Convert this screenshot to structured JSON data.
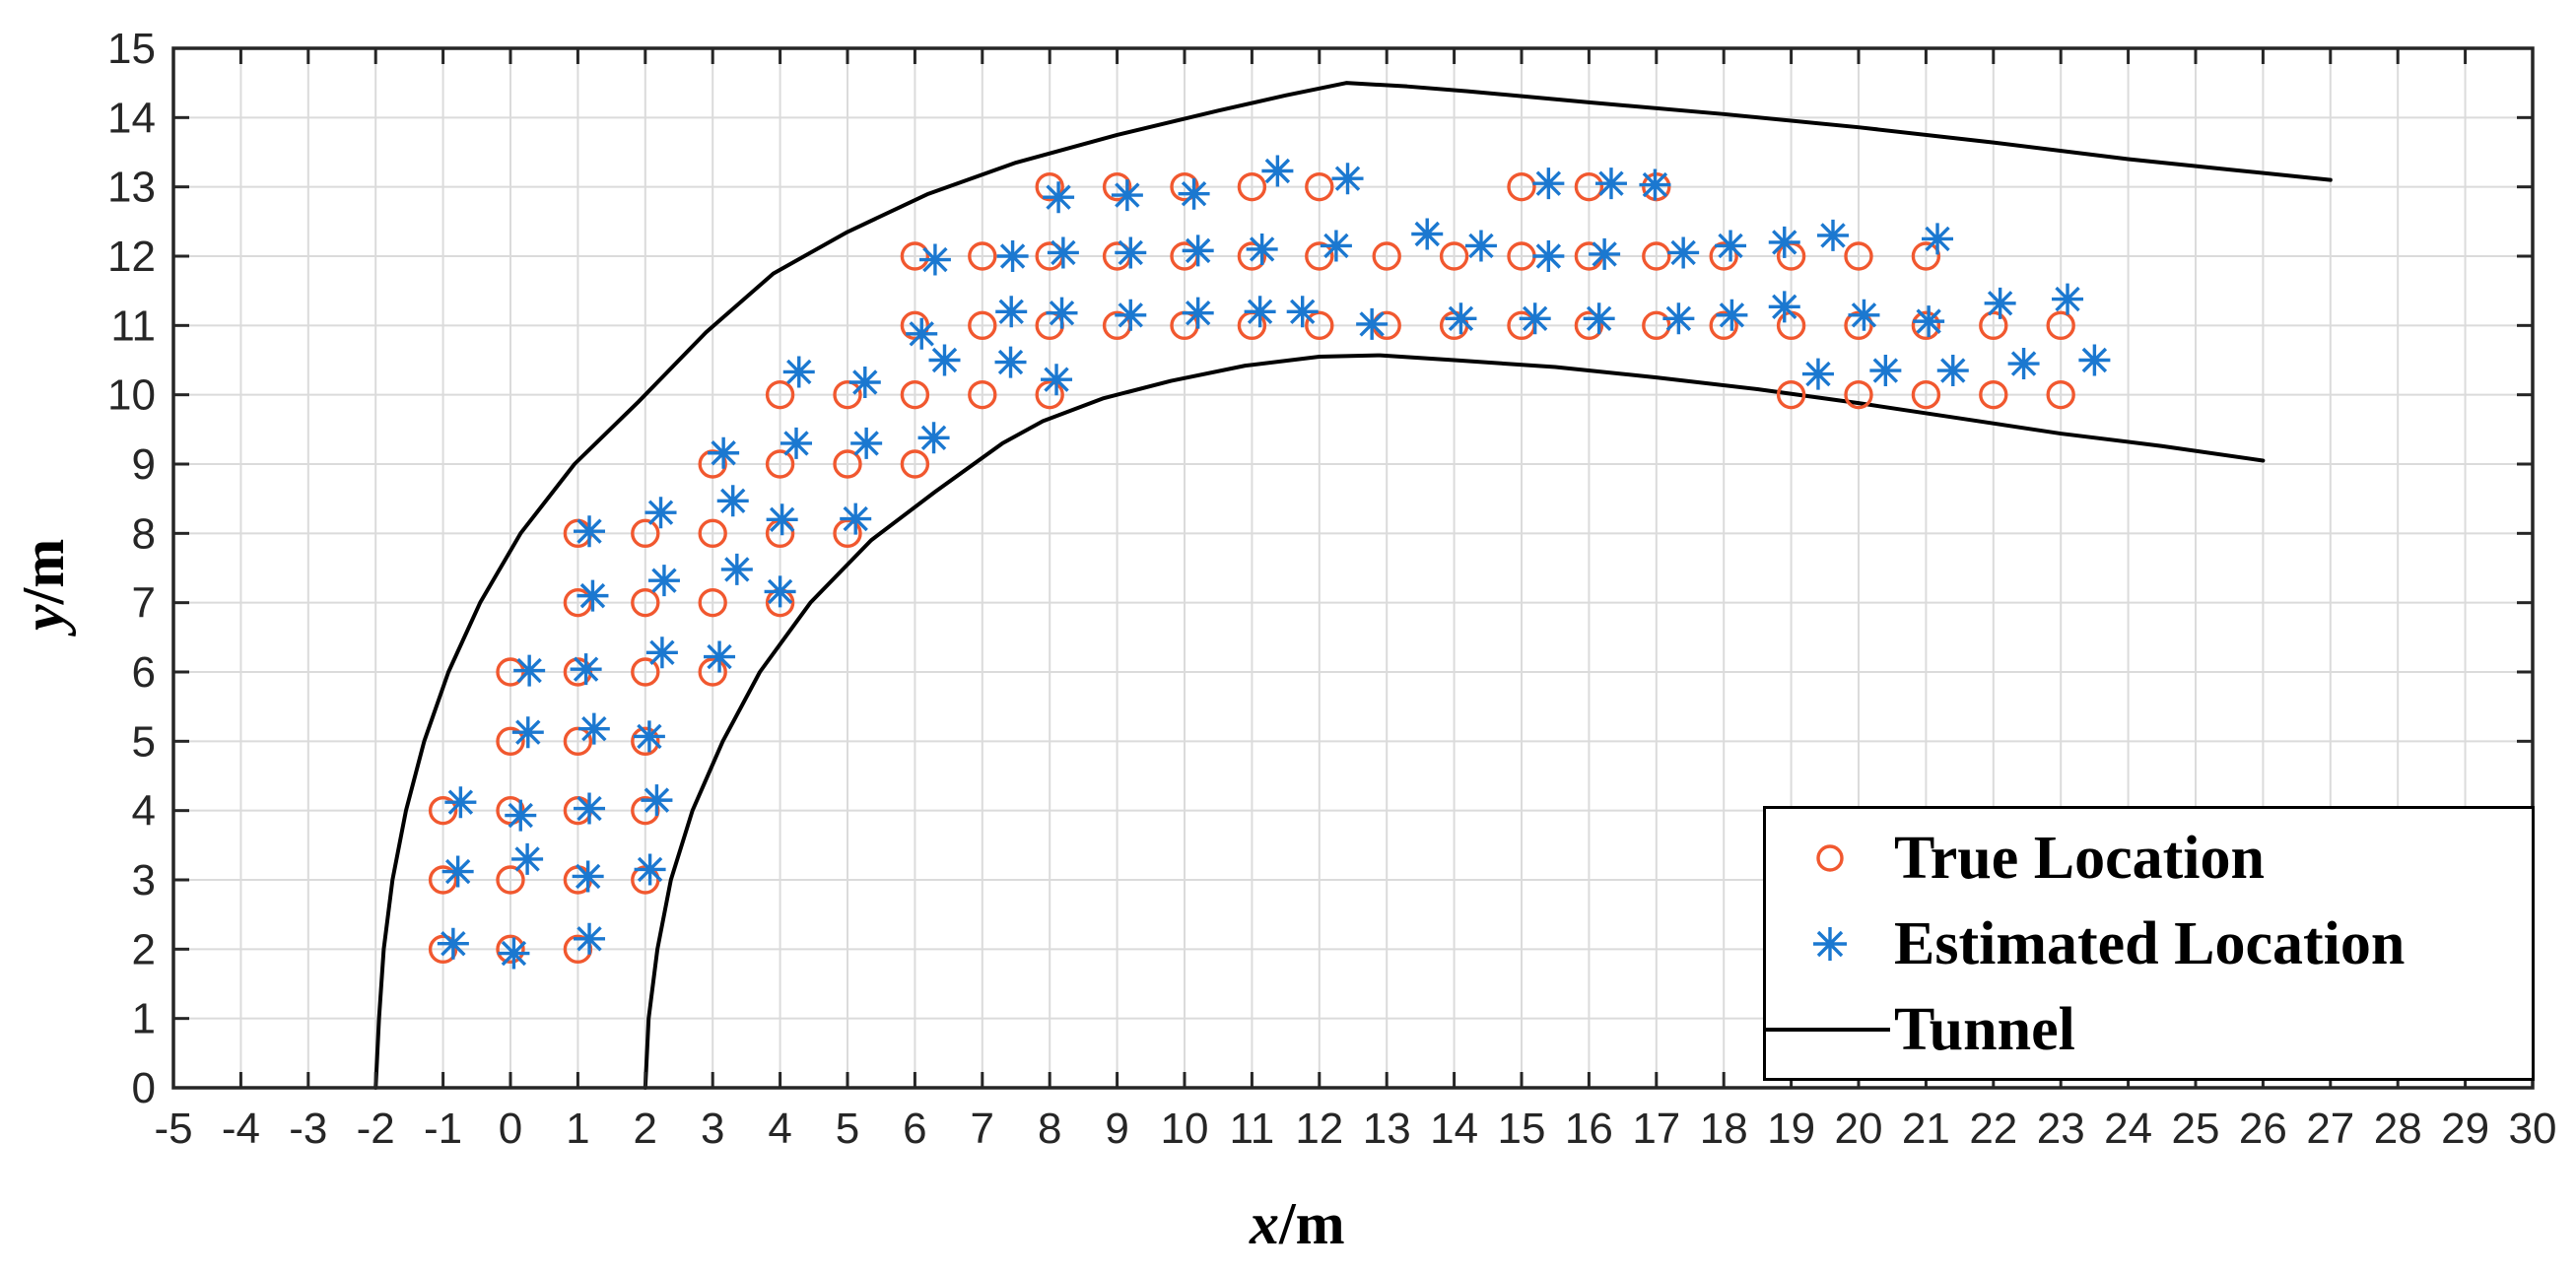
{
  "chart_data": {
    "type": "scatter",
    "title": "",
    "xlabel_var": "x",
    "xlabel_rest": "/m",
    "ylabel_var": "y",
    "ylabel_rest": "/m",
    "xlim": [
      -5,
      30
    ],
    "ylim": [
      0,
      15
    ],
    "xticks": [
      -5,
      -4,
      -3,
      -2,
      -1,
      0,
      1,
      2,
      3,
      4,
      5,
      6,
      7,
      8,
      9,
      10,
      11,
      12,
      13,
      14,
      15,
      16,
      17,
      18,
      19,
      20,
      21,
      22,
      23,
      24,
      25,
      26,
      27,
      28,
      29,
      30
    ],
    "yticks": [
      0,
      1,
      2,
      3,
      4,
      5,
      6,
      7,
      8,
      9,
      10,
      11,
      12,
      13,
      14,
      15
    ],
    "grid": true,
    "colors": {
      "true_location": "#F1582F",
      "estimated_location": "#1B78D0",
      "tunnel": "#000000",
      "axis": "#262626",
      "grid": "#DBDBDB"
    },
    "legend": {
      "position": "southeast",
      "entries": [
        {
          "label": "True Location",
          "marker": "circle"
        },
        {
          "label": "Estimated Location",
          "marker": "asterisk"
        },
        {
          "label": "Tunnel",
          "marker": "line"
        }
      ]
    },
    "series": [
      {
        "name": "True Location",
        "marker": "circle",
        "points": [
          [
            -1,
            2
          ],
          [
            0,
            2
          ],
          [
            1,
            2
          ],
          [
            -1,
            3
          ],
          [
            0,
            3
          ],
          [
            1,
            3
          ],
          [
            2,
            3
          ],
          [
            -1,
            4
          ],
          [
            0,
            4
          ],
          [
            1,
            4
          ],
          [
            2,
            4
          ],
          [
            0,
            5
          ],
          [
            1,
            5
          ],
          [
            2,
            5
          ],
          [
            0,
            6
          ],
          [
            1,
            6
          ],
          [
            2,
            6
          ],
          [
            3,
            6
          ],
          [
            1,
            7
          ],
          [
            2,
            7
          ],
          [
            3,
            7
          ],
          [
            4,
            7
          ],
          [
            1,
            8
          ],
          [
            2,
            8
          ],
          [
            3,
            8
          ],
          [
            4,
            8
          ],
          [
            5,
            8
          ],
          [
            3,
            9
          ],
          [
            4,
            9
          ],
          [
            5,
            9
          ],
          [
            6,
            9
          ],
          [
            4,
            10
          ],
          [
            5,
            10
          ],
          [
            6,
            10
          ],
          [
            7,
            10
          ],
          [
            8,
            10
          ],
          [
            19,
            10
          ],
          [
            20,
            10
          ],
          [
            21,
            10
          ],
          [
            22,
            10
          ],
          [
            23,
            10
          ],
          [
            6,
            11
          ],
          [
            7,
            11
          ],
          [
            8,
            11
          ],
          [
            9,
            11
          ],
          [
            10,
            11
          ],
          [
            11,
            11
          ],
          [
            12,
            11
          ],
          [
            13,
            11
          ],
          [
            14,
            11
          ],
          [
            15,
            11
          ],
          [
            16,
            11
          ],
          [
            17,
            11
          ],
          [
            18,
            11
          ],
          [
            19,
            11
          ],
          [
            20,
            11
          ],
          [
            21,
            11
          ],
          [
            22,
            11
          ],
          [
            23,
            11
          ],
          [
            6,
            12
          ],
          [
            7,
            12
          ],
          [
            8,
            12
          ],
          [
            9,
            12
          ],
          [
            10,
            12
          ],
          [
            11,
            12
          ],
          [
            12,
            12
          ],
          [
            13,
            12
          ],
          [
            14,
            12
          ],
          [
            15,
            12
          ],
          [
            16,
            12
          ],
          [
            17,
            12
          ],
          [
            18,
            12
          ],
          [
            19,
            12
          ],
          [
            20,
            12
          ],
          [
            21,
            12
          ],
          [
            8,
            13
          ],
          [
            9,
            13
          ],
          [
            10,
            13
          ],
          [
            11,
            13
          ],
          [
            12,
            13
          ],
          [
            15,
            13
          ],
          [
            16,
            13
          ],
          [
            17,
            13
          ]
        ]
      },
      {
        "name": "Estimated Location",
        "marker": "asterisk",
        "points": [
          [
            -0.85,
            2.08
          ],
          [
            0.05,
            1.94
          ],
          [
            1.17,
            2.15
          ],
          [
            -0.78,
            3.12
          ],
          [
            0.25,
            3.3
          ],
          [
            1.15,
            3.05
          ],
          [
            2.07,
            3.15
          ],
          [
            -0.74,
            4.12
          ],
          [
            0.15,
            3.93
          ],
          [
            1.17,
            4.03
          ],
          [
            2.17,
            4.15
          ],
          [
            0.26,
            5.13
          ],
          [
            1.24,
            5.18
          ],
          [
            2.06,
            5.07
          ],
          [
            0.28,
            6.02
          ],
          [
            1.12,
            6.04
          ],
          [
            2.25,
            6.28
          ],
          [
            3.1,
            6.22
          ],
          [
            1.22,
            7.1
          ],
          [
            2.28,
            7.32
          ],
          [
            3.36,
            7.48
          ],
          [
            4.0,
            7.16
          ],
          [
            1.17,
            8.03
          ],
          [
            2.23,
            8.3
          ],
          [
            3.3,
            8.47
          ],
          [
            4.03,
            8.2
          ],
          [
            5.12,
            8.21
          ],
          [
            3.16,
            9.16
          ],
          [
            4.24,
            9.3
          ],
          [
            5.28,
            9.3
          ],
          [
            6.28,
            9.38
          ],
          [
            4.28,
            10.33
          ],
          [
            5.26,
            10.18
          ],
          [
            6.44,
            10.5
          ],
          [
            7.42,
            10.47
          ],
          [
            8.1,
            10.22
          ],
          [
            19.4,
            10.3
          ],
          [
            20.4,
            10.35
          ],
          [
            21.4,
            10.35
          ],
          [
            22.45,
            10.45
          ],
          [
            23.5,
            10.5
          ],
          [
            6.1,
            10.88
          ],
          [
            7.43,
            11.2
          ],
          [
            8.18,
            11.18
          ],
          [
            9.2,
            11.15
          ],
          [
            10.2,
            11.18
          ],
          [
            11.12,
            11.2
          ],
          [
            11.75,
            11.2
          ],
          [
            12.78,
            11.02
          ],
          [
            14.1,
            11.1
          ],
          [
            15.2,
            11.1
          ],
          [
            16.15,
            11.1
          ],
          [
            17.33,
            11.1
          ],
          [
            18.12,
            11.15
          ],
          [
            18.9,
            11.27
          ],
          [
            20.08,
            11.15
          ],
          [
            21.04,
            11.06
          ],
          [
            22.1,
            11.32
          ],
          [
            23.1,
            11.38
          ],
          [
            6.3,
            11.95
          ],
          [
            7.45,
            12.0
          ],
          [
            8.2,
            12.05
          ],
          [
            9.2,
            12.05
          ],
          [
            10.2,
            12.08
          ],
          [
            11.15,
            12.1
          ],
          [
            12.25,
            12.15
          ],
          [
            13.6,
            12.32
          ],
          [
            14.4,
            12.15
          ],
          [
            15.4,
            12.0
          ],
          [
            16.23,
            12.03
          ],
          [
            17.4,
            12.05
          ],
          [
            18.1,
            12.15
          ],
          [
            18.9,
            12.2
          ],
          [
            19.62,
            12.3
          ],
          [
            21.17,
            12.25
          ],
          [
            8.13,
            12.85
          ],
          [
            9.15,
            12.88
          ],
          [
            10.14,
            12.9
          ],
          [
            11.38,
            13.23
          ],
          [
            12.42,
            13.12
          ],
          [
            15.4,
            13.05
          ],
          [
            16.33,
            13.05
          ],
          [
            16.98,
            13.03
          ]
        ]
      },
      {
        "name": "Tunnel",
        "marker": "line",
        "outer_wall": [
          [
            -2.0,
            0
          ],
          [
            -1.95,
            1.0
          ],
          [
            -1.88,
            2.0
          ],
          [
            -1.75,
            3.0
          ],
          [
            -1.55,
            4.0
          ],
          [
            -1.28,
            5.0
          ],
          [
            -0.92,
            6.0
          ],
          [
            -0.45,
            7.0
          ],
          [
            0.15,
            8.0
          ],
          [
            0.95,
            9.0
          ],
          [
            1.9,
            9.9
          ],
          [
            2.9,
            10.9
          ],
          [
            3.9,
            11.75
          ],
          [
            5.0,
            12.35
          ],
          [
            6.2,
            12.9
          ],
          [
            7.5,
            13.35
          ],
          [
            9.0,
            13.75
          ],
          [
            10.5,
            14.1
          ],
          [
            11.5,
            14.32
          ],
          [
            12.4,
            14.5
          ],
          [
            13.3,
            14.45
          ],
          [
            14.2,
            14.38
          ],
          [
            16.0,
            14.22
          ],
          [
            18.0,
            14.05
          ],
          [
            20.0,
            13.86
          ],
          [
            22.0,
            13.64
          ],
          [
            24.0,
            13.4
          ],
          [
            25.5,
            13.25
          ],
          [
            27.0,
            13.1
          ]
        ],
        "inner_wall": [
          [
            2.0,
            0
          ],
          [
            2.05,
            1.0
          ],
          [
            2.18,
            2.0
          ],
          [
            2.38,
            3.0
          ],
          [
            2.7,
            4.0
          ],
          [
            3.15,
            5.0
          ],
          [
            3.7,
            6.0
          ],
          [
            4.45,
            7.0
          ],
          [
            5.35,
            7.9
          ],
          [
            6.3,
            8.6
          ],
          [
            7.3,
            9.3
          ],
          [
            7.9,
            9.62
          ],
          [
            8.8,
            9.95
          ],
          [
            9.8,
            10.2
          ],
          [
            10.9,
            10.42
          ],
          [
            12.0,
            10.55
          ],
          [
            12.9,
            10.57
          ],
          [
            14.0,
            10.5
          ],
          [
            15.5,
            10.4
          ],
          [
            17.0,
            10.25
          ],
          [
            18.5,
            10.08
          ],
          [
            20.0,
            9.88
          ],
          [
            21.5,
            9.66
          ],
          [
            23.0,
            9.44
          ],
          [
            24.5,
            9.26
          ],
          [
            26.0,
            9.05
          ]
        ]
      }
    ]
  }
}
